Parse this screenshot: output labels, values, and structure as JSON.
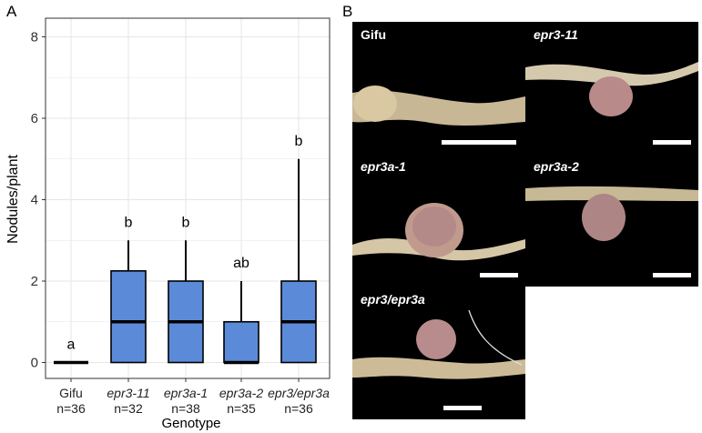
{
  "panels": {
    "a_label": "A",
    "b_label": "B"
  },
  "chart_data": {
    "type": "boxplot",
    "xlabel": "Genotype",
    "ylabel": "Nodules/plant",
    "ylim": [
      0,
      8.5
    ],
    "yticks": [
      0,
      2,
      4,
      6,
      8
    ],
    "grid": true,
    "fill_color": "#5b8bd8",
    "categories": [
      {
        "name": "Gifu",
        "italic": false,
        "n": "n=36",
        "min": 0,
        "q1": 0,
        "median": 0,
        "q3": 0,
        "max": 0,
        "letter": "a"
      },
      {
        "name": "epr3-11",
        "italic": true,
        "n": "n=32",
        "min": 0,
        "q1": 0,
        "median": 1,
        "q3": 2.25,
        "max": 3,
        "letter": "b"
      },
      {
        "name": "epr3a-1",
        "italic": true,
        "n": "n=38",
        "min": 0,
        "q1": 0,
        "median": 1,
        "q3": 2,
        "max": 3,
        "letter": "b"
      },
      {
        "name": "epr3a-2",
        "italic": true,
        "n": "n=35",
        "min": 0,
        "q1": 0,
        "median": 0,
        "q3": 1,
        "max": 2,
        "letter": "ab"
      },
      {
        "name": "epr3/epr3a",
        "italic": true,
        "n": "n=36",
        "min": 0,
        "q1": 0,
        "median": 1,
        "q3": 2,
        "max": 5,
        "letter": "b"
      }
    ]
  },
  "photos": [
    {
      "label": "Gifu",
      "italic": false
    },
    {
      "label": "epr3-11",
      "italic": true
    },
    {
      "label": "epr3a-1",
      "italic": true
    },
    {
      "label": "epr3a-2",
      "italic": true
    },
    {
      "label": "epr3/epr3a",
      "italic": true
    }
  ],
  "colors": {
    "box_fill": "#5b8bd8",
    "grid": "#e6e6e6",
    "photo_bg": "#000000",
    "root": "#c9b99a",
    "nodule": "#b88c88"
  }
}
